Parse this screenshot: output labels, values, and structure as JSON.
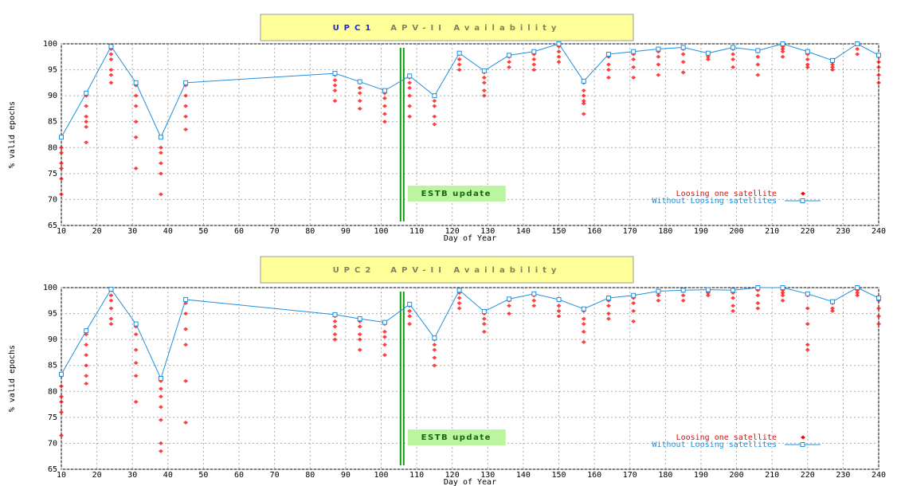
{
  "chart_data": [
    {
      "type": "line",
      "title_label": "UPC1",
      "title": "APV-II Availability",
      "xlabel": "Day of Year",
      "ylabel": "% valid epochs",
      "xlim": [
        10,
        240
      ],
      "xticks": [
        10,
        20,
        30,
        40,
        50,
        60,
        70,
        80,
        90,
        100,
        110,
        120,
        130,
        140,
        150,
        160,
        170,
        180,
        190,
        200,
        210,
        220,
        230,
        240
      ],
      "ylim": [
        65,
        100
      ],
      "yticks": [
        65,
        70,
        75,
        80,
        85,
        90,
        95,
        100
      ],
      "grid": true,
      "legend": "lower right",
      "annotations": [
        {
          "text": "ESTB update",
          "x": 105
        }
      ],
      "series": [
        {
          "name": "Loosing one satellite",
          "color": "#ff0000",
          "type": "scatter",
          "x": [
            10,
            10,
            10,
            10,
            10,
            10,
            10,
            17,
            17,
            17,
            17,
            17,
            17,
            24,
            24,
            24,
            24,
            24,
            24,
            31,
            31,
            31,
            31,
            31,
            31,
            38,
            38,
            38,
            38,
            38,
            38,
            45,
            45,
            45,
            45,
            45,
            87,
            87,
            87,
            87,
            87,
            94,
            94,
            94,
            94,
            94,
            101,
            101,
            101,
            101,
            101,
            108,
            108,
            108,
            108,
            108,
            108,
            115,
            115,
            115,
            115,
            115,
            122,
            122,
            122,
            122,
            129,
            129,
            129,
            129,
            129,
            136,
            136,
            136,
            143,
            143,
            143,
            143,
            150,
            150,
            150,
            150,
            157,
            157,
            157,
            157,
            157,
            157,
            164,
            164,
            164,
            164,
            171,
            171,
            171,
            171,
            178,
            178,
            178,
            178,
            185,
            185,
            185,
            185,
            192,
            192,
            192,
            199,
            199,
            199,
            199,
            206,
            206,
            206,
            206,
            213,
            213,
            213,
            213,
            220,
            220,
            220,
            220,
            227,
            227,
            227,
            227,
            234,
            234,
            234,
            240,
            240,
            240,
            240,
            240
          ],
          "values": [
            82,
            80,
            79,
            77,
            76,
            74,
            71,
            90,
            88,
            86,
            85,
            84,
            81,
            99,
            98,
            97,
            95,
            94,
            92.5,
            92,
            90,
            88,
            85,
            82,
            76,
            82,
            80,
            79,
            77,
            75,
            71,
            92,
            90,
            88,
            86,
            83.5,
            94,
            93,
            92,
            91,
            89,
            92.5,
            91.5,
            90.5,
            89,
            87.5,
            90.5,
            89.5,
            88,
            86.5,
            85,
            93.5,
            92.5,
            91.5,
            90,
            88,
            86,
            90,
            89,
            88,
            86,
            84.5,
            98,
            97,
            96,
            95,
            94.5,
            93.5,
            92.5,
            91,
            90,
            97.5,
            96.5,
            95.5,
            98,
            97,
            96,
            95,
            99.5,
            98.5,
            97.5,
            96.5,
            92.5,
            91,
            90,
            89,
            88.5,
            86.5,
            97.5,
            96,
            95,
            93.5,
            98,
            97,
            95.5,
            93.5,
            98.5,
            97.5,
            96,
            94,
            99,
            98,
            96.5,
            94.5,
            98,
            97.5,
            97,
            99,
            98,
            97,
            95.5,
            98.5,
            97.5,
            96,
            94,
            99.5,
            99,
            98.5,
            97.5,
            98,
            97,
            96,
            95.5,
            96.5,
            96,
            95.5,
            95,
            100,
            99,
            98,
            97.5,
            96.5,
            95.5,
            94,
            92.5
          ]
        },
        {
          "name": "Without Loosing satellites",
          "color": "#1e90e0",
          "x": [
            10,
            17,
            24,
            31,
            38,
            45,
            87,
            94,
            101,
            108,
            115,
            122,
            129,
            136,
            143,
            150,
            157,
            164,
            171,
            178,
            185,
            192,
            199,
            206,
            213,
            220,
            227,
            234,
            240
          ],
          "values": [
            82,
            90.5,
            99.5,
            92.5,
            82,
            92.5,
            94.3,
            92.7,
            91,
            93.8,
            90,
            98.2,
            94.8,
            97.8,
            98.5,
            100,
            92.8,
            98,
            98.5,
            99,
            99.3,
            98.2,
            99.3,
            98.7,
            100,
            98.5,
            96.8,
            100,
            97.8
          ]
        }
      ]
    },
    {
      "type": "line",
      "title_label": "UPC2",
      "title": "APV-II Availability",
      "xlabel": "Day of Year",
      "ylabel": "% valid epochs",
      "xlim": [
        10,
        240
      ],
      "xticks": [
        10,
        20,
        30,
        40,
        50,
        60,
        70,
        80,
        90,
        100,
        110,
        120,
        130,
        140,
        150,
        160,
        170,
        180,
        190,
        200,
        210,
        220,
        230,
        240
      ],
      "ylim": [
        65,
        100
      ],
      "yticks": [
        65,
        70,
        75,
        80,
        85,
        90,
        95,
        100
      ],
      "grid": true,
      "legend": "lower right",
      "annotations": [
        {
          "text": "ESTB update",
          "x": 105
        }
      ],
      "series": [
        {
          "name": "Loosing one satellite",
          "color": "#ff0000",
          "type": "scatter",
          "x": [
            10,
            10,
            10,
            10,
            10,
            10,
            17,
            17,
            17,
            17,
            17,
            17,
            24,
            24,
            24,
            24,
            24,
            24,
            31,
            31,
            31,
            31,
            31,
            31,
            38,
            38,
            38,
            38,
            38,
            38,
            38,
            45,
            45,
            45,
            45,
            45,
            45,
            87,
            87,
            87,
            87,
            87,
            94,
            94,
            94,
            94,
            94,
            101,
            101,
            101,
            101,
            101,
            108,
            108,
            108,
            108,
            115,
            115,
            115,
            115,
            115,
            122,
            122,
            122,
            122,
            129,
            129,
            129,
            129,
            136,
            136,
            136,
            143,
            143,
            143,
            150,
            150,
            150,
            150,
            157,
            157,
            157,
            157,
            157,
            164,
            164,
            164,
            164,
            171,
            171,
            171,
            171,
            178,
            178,
            178,
            185,
            185,
            185,
            192,
            192,
            192,
            199,
            199,
            199,
            199,
            206,
            206,
            206,
            206,
            213,
            213,
            213,
            213,
            220,
            220,
            220,
            220,
            220,
            227,
            227,
            227,
            234,
            234,
            234,
            240,
            240,
            240,
            240
          ],
          "values": [
            83,
            81,
            79,
            78,
            76,
            71.5,
            91,
            89,
            87,
            85,
            83,
            81.5,
            99.5,
            98.5,
            97.5,
            96,
            94,
            93,
            92.5,
            91,
            88,
            85.5,
            83,
            78,
            82,
            80.5,
            79,
            77,
            74.5,
            70,
            68.5,
            97,
            95,
            92,
            89,
            82,
            74,
            94.5,
            93.5,
            92.5,
            91,
            90,
            93.5,
            92.5,
            91,
            90,
            88,
            93,
            91.5,
            90.5,
            89,
            87,
            96.5,
            95.5,
            94.5,
            93,
            90,
            89,
            88,
            86.5,
            85,
            99,
            98,
            97,
            96,
            95,
            94,
            93,
            91.5,
            97.5,
            96.5,
            95,
            98.5,
            97.5,
            96.5,
            97.5,
            96.5,
            95.5,
            94.5,
            95.5,
            94,
            93,
            91.5,
            89.5,
            97.5,
            96.5,
            95,
            94,
            98,
            97,
            95.5,
            93.5,
            99,
            98.5,
            97.5,
            99.3,
            98.5,
            97.5,
            99.5,
            99,
            98.5,
            99,
            98,
            96.5,
            95.5,
            99.5,
            98.5,
            97,
            96,
            99.5,
            99,
            98.5,
            97.5,
            98.5,
            96,
            93,
            89,
            88,
            97,
            96,
            95.5,
            99.5,
            99,
            98.5,
            97.5,
            96,
            94.5,
            93
          ]
        },
        {
          "name": "Without Loosing satellites",
          "color": "#1e90e0",
          "x": [
            10,
            17,
            24,
            31,
            38,
            45,
            87,
            94,
            101,
            108,
            115,
            122,
            129,
            136,
            143,
            150,
            157,
            164,
            171,
            178,
            185,
            192,
            199,
            206,
            213,
            220,
            227,
            234,
            240
          ],
          "values": [
            83.3,
            91.7,
            99.7,
            93,
            82.5,
            97.7,
            94.8,
            94,
            93.3,
            96.8,
            90.3,
            99.5,
            95.4,
            97.8,
            98.8,
            97.7,
            95.9,
            98,
            98.5,
            99.3,
            99.5,
            99.6,
            99.5,
            100,
            100,
            98.8,
            97.3,
            100,
            98
          ]
        }
      ]
    }
  ]
}
